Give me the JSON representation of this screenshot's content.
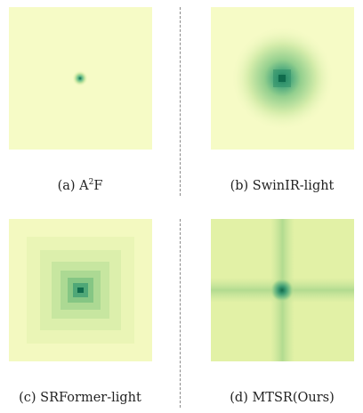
{
  "figure": {
    "panels": [
      {
        "id": "a",
        "caption_prefix": "(a) A",
        "caption_sup": "2",
        "caption_suffix": "F",
        "pattern": "small-point"
      },
      {
        "id": "b",
        "caption": "(b) SwinIR-light",
        "pattern": "medium-square-blur"
      },
      {
        "id": "c",
        "caption": "(c) SRFormer-light",
        "pattern": "large-square-steps"
      },
      {
        "id": "d",
        "caption": "(d) MTSR(Ours)",
        "pattern": "cross"
      }
    ],
    "colors": {
      "background_light": "#f6fbc6",
      "background_cross": "#e2f1a6",
      "center_dark": "#0f6b4c",
      "mid_green": "#a9d98e",
      "divider": "#8a8a8a"
    }
  }
}
